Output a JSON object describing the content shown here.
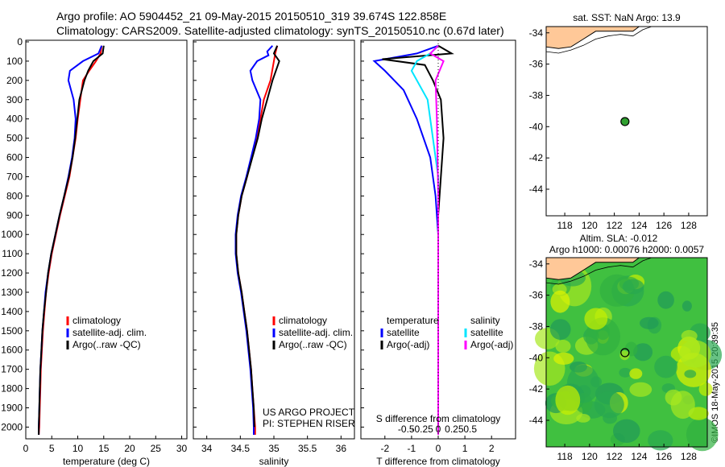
{
  "header": {
    "line1": "Argo profile: AO 5904452_21 09-May-2015 20150510_319 39.674S 122.858E",
    "line2": "Climatology: CARS2009. Satellite-adjusted climatology: synTS_20150510.nc (0.67d later)"
  },
  "credit": "©IMOS 18-May-2015 20:39:35",
  "colors": {
    "climatology": "#ff0000",
    "satellite": "#0000ff",
    "argo": "#000000",
    "sat_diff": "#00e5ff",
    "argo_sdiff": "#ff00ff",
    "land": "#ffc898",
    "sla": "#30c030"
  },
  "chart_data": [
    {
      "type": "line",
      "xlabel": "temperature (deg C)",
      "xlim": [
        0,
        31
      ],
      "ylim": [
        2050,
        0
      ],
      "xticks": [
        "0",
        "5",
        "10",
        "15",
        "20",
        "25",
        "30"
      ],
      "yticks": [
        "0",
        "100",
        "200",
        "300",
        "400",
        "500",
        "600",
        "700",
        "800",
        "900",
        "1000",
        "1100",
        "1200",
        "1300",
        "1400",
        "1500",
        "1600",
        "1700",
        "1800",
        "1900",
        "2000"
      ],
      "legend": [
        "climatology",
        "satellite-adj. clim.",
        "Argo(..raw -QC)"
      ],
      "series": [
        {
          "name": "climatology",
          "color": "#ff0000",
          "points": [
            [
              14.6,
              20
            ],
            [
              14.4,
              60
            ],
            [
              13.5,
              100
            ],
            [
              12.2,
              150
            ],
            [
              11.0,
              200
            ],
            [
              10.5,
              300
            ],
            [
              10.0,
              400
            ],
            [
              9.6,
              500
            ],
            [
              9.0,
              600
            ],
            [
              8.4,
              700
            ],
            [
              7.5,
              800
            ],
            [
              6.6,
              900
            ],
            [
              5.8,
              1000
            ],
            [
              5.0,
              1100
            ],
            [
              4.4,
              1200
            ],
            [
              3.9,
              1300
            ],
            [
              3.6,
              1400
            ],
            [
              3.3,
              1500
            ],
            [
              3.1,
              1600
            ],
            [
              2.9,
              1700
            ],
            [
              2.8,
              1800
            ],
            [
              2.7,
              1900
            ],
            [
              2.6,
              2000
            ],
            [
              2.5,
              2040
            ]
          ]
        },
        {
          "name": "satellite-adj. clim.",
          "color": "#0000ff",
          "points": [
            [
              14.6,
              20
            ],
            [
              14.0,
              60
            ],
            [
              11.0,
              100
            ],
            [
              8.5,
              150
            ],
            [
              8.2,
              200
            ],
            [
              9.2,
              300
            ],
            [
              9.6,
              400
            ],
            [
              9.4,
              500
            ],
            [
              8.9,
              600
            ],
            [
              8.2,
              700
            ],
            [
              7.4,
              800
            ],
            [
              6.5,
              900
            ],
            [
              5.7,
              1000
            ],
            [
              4.9,
              1100
            ],
            [
              4.3,
              1200
            ],
            [
              3.8,
              1300
            ],
            [
              3.5,
              1400
            ],
            [
              3.2,
              1500
            ],
            [
              3.0,
              1600
            ],
            [
              2.8,
              1700
            ],
            [
              2.7,
              1800
            ],
            [
              2.6,
              1900
            ],
            [
              2.5,
              2000
            ],
            [
              2.5,
              2040
            ]
          ]
        },
        {
          "name": "Argo(..raw -QC)",
          "color": "#000000",
          "points": [
            [
              15.0,
              20
            ],
            [
              14.8,
              60
            ],
            [
              13.0,
              100
            ],
            [
              12.0,
              150
            ],
            [
              11.3,
              200
            ],
            [
              10.3,
              300
            ],
            [
              9.9,
              400
            ],
            [
              9.5,
              500
            ],
            [
              9.0,
              600
            ],
            [
              8.3,
              700
            ],
            [
              7.4,
              800
            ],
            [
              6.5,
              900
            ],
            [
              5.7,
              1000
            ],
            [
              4.9,
              1100
            ],
            [
              4.3,
              1200
            ],
            [
              3.9,
              1300
            ],
            [
              3.5,
              1400
            ],
            [
              3.2,
              1500
            ],
            [
              3.0,
              1600
            ],
            [
              2.8,
              1700
            ],
            [
              2.7,
              1800
            ],
            [
              2.6,
              1900
            ],
            [
              2.5,
              2000
            ],
            [
              2.5,
              2040
            ]
          ]
        }
      ]
    },
    {
      "type": "line",
      "xlabel": "salinity",
      "xlim": [
        33.8,
        36.2
      ],
      "ylim": [
        2050,
        0
      ],
      "xticks": [
        "34",
        "34.5",
        "35",
        "35.5",
        "36"
      ],
      "legend": [
        "climatology",
        "satellite-adj. clim.",
        "Argo(..raw -QC)"
      ],
      "annotation": [
        "US ARGO PROJECT",
        "PI: STEPHEN RISER"
      ],
      "series": [
        {
          "name": "climatology",
          "color": "#ff0000",
          "points": [
            [
              35.05,
              20
            ],
            [
              35.02,
              60
            ],
            [
              35.0,
              100
            ],
            [
              34.95,
              200
            ],
            [
              34.85,
              300
            ],
            [
              34.8,
              400
            ],
            [
              34.75,
              500
            ],
            [
              34.67,
              600
            ],
            [
              34.6,
              700
            ],
            [
              34.52,
              800
            ],
            [
              34.47,
              900
            ],
            [
              34.44,
              1000
            ],
            [
              34.44,
              1100
            ],
            [
              34.47,
              1200
            ],
            [
              34.52,
              1300
            ],
            [
              34.56,
              1400
            ],
            [
              34.6,
              1500
            ],
            [
              34.63,
              1600
            ],
            [
              34.66,
              1700
            ],
            [
              34.68,
              1800
            ],
            [
              34.7,
              1900
            ],
            [
              34.72,
              2000
            ],
            [
              34.72,
              2040
            ]
          ]
        },
        {
          "name": "satellite-adj. clim.",
          "color": "#0000ff",
          "points": [
            [
              34.98,
              20
            ],
            [
              34.9,
              50
            ],
            [
              34.92,
              70
            ],
            [
              34.75,
              100
            ],
            [
              34.65,
              150
            ],
            [
              34.68,
              200
            ],
            [
              34.8,
              300
            ],
            [
              34.78,
              400
            ],
            [
              34.73,
              500
            ],
            [
              34.66,
              600
            ],
            [
              34.59,
              700
            ],
            [
              34.51,
              800
            ],
            [
              34.46,
              900
            ],
            [
              34.43,
              1000
            ],
            [
              34.43,
              1100
            ],
            [
              34.46,
              1200
            ],
            [
              34.51,
              1300
            ],
            [
              34.55,
              1400
            ],
            [
              34.59,
              1500
            ],
            [
              34.62,
              1600
            ],
            [
              34.65,
              1700
            ],
            [
              34.67,
              1800
            ],
            [
              34.69,
              1900
            ],
            [
              34.7,
              2000
            ],
            [
              34.7,
              2040
            ]
          ]
        },
        {
          "name": "Argo(..raw -QC)",
          "color": "#000000",
          "points": [
            [
              35.05,
              20
            ],
            [
              35.0,
              60
            ],
            [
              35.08,
              100
            ],
            [
              34.98,
              200
            ],
            [
              34.9,
              300
            ],
            [
              34.82,
              400
            ],
            [
              34.76,
              500
            ],
            [
              34.68,
              600
            ],
            [
              34.6,
              700
            ],
            [
              34.52,
              800
            ],
            [
              34.47,
              900
            ],
            [
              34.44,
              1000
            ],
            [
              34.44,
              1100
            ],
            [
              34.47,
              1200
            ],
            [
              34.52,
              1300
            ],
            [
              34.56,
              1400
            ],
            [
              34.6,
              1500
            ],
            [
              34.63,
              1600
            ],
            [
              34.66,
              1700
            ],
            [
              34.68,
              1800
            ],
            [
              34.7,
              1900
            ],
            [
              34.71,
              2000
            ]
          ]
        }
      ]
    },
    {
      "type": "line",
      "xlabel": "T difference from climatology",
      "secondary_xlabel": "S difference from climatology",
      "xlim": [
        -2.9,
        2.9
      ],
      "ylim": [
        2050,
        0
      ],
      "xticks": [
        "-2",
        "-1",
        "0",
        "1",
        "2"
      ],
      "secondary_xticks": [
        "-0.5",
        "-0.25",
        "0",
        "0.25",
        "0.5"
      ],
      "legend_headers": [
        "temperature",
        "salinity"
      ],
      "legend": [
        "satellite",
        "Argo(-adj)",
        "satellite",
        "Argo(-adj)"
      ],
      "series": [
        {
          "name": "satellite",
          "color": "#0000ff",
          "points": [
            [
              0,
              20
            ],
            [
              -0.8,
              60
            ],
            [
              -2.4,
              100
            ],
            [
              -2.0,
              150
            ],
            [
              -1.3,
              250
            ],
            [
              -0.8,
              400
            ],
            [
              -0.3,
              600
            ],
            [
              -0.1,
              800
            ],
            [
              0,
              1000
            ],
            [
              0,
              2040
            ]
          ]
        },
        {
          "name": "Argo(-adj)",
          "color": "#000000",
          "points": [
            [
              0,
              20
            ],
            [
              0.5,
              60
            ],
            [
              -2.1,
              90
            ],
            [
              -0.5,
              120
            ],
            [
              -0.2,
              200
            ],
            [
              0.1,
              300
            ],
            [
              0.2,
              500
            ],
            [
              0.1,
              700
            ],
            [
              0,
              900
            ],
            [
              0,
              2040
            ]
          ]
        },
        {
          "name": "satellite",
          "color": "#00e5ff",
          "points": [
            [
              0,
              20
            ],
            [
              -0.3,
              60
            ],
            [
              -0.8,
              100
            ],
            [
              -1.0,
              150
            ],
            [
              -0.4,
              300
            ],
            [
              -0.2,
              500
            ],
            [
              0,
              700
            ],
            [
              0,
              2040
            ]
          ]
        },
        {
          "name": "Argo(-adj)",
          "color": "#ff00ff",
          "points": [
            [
              0,
              20
            ],
            [
              -0.3,
              60
            ],
            [
              0.2,
              100
            ],
            [
              -0.1,
              200
            ],
            [
              -0.05,
              400
            ],
            [
              0,
              800
            ],
            [
              0,
              2040
            ]
          ]
        }
      ]
    },
    {
      "type": "scatter",
      "title": "sat. SST: NaN Argo: 13.9",
      "xlim": [
        116.5,
        129.5
      ],
      "ylim": [
        -45.7,
        -33.6
      ],
      "xticks": [
        "118",
        "120",
        "122",
        "124",
        "126",
        "128"
      ],
      "yticks": [
        "-34",
        "-36",
        "-38",
        "-40",
        "-42",
        "-44"
      ],
      "marker": {
        "lon": 122.858,
        "lat": -39.674,
        "color": "#30a030"
      }
    },
    {
      "type": "heatmap",
      "title": "Altim. SLA: -0.012",
      "subtitle": "Argo h1000: 0.00076 h2000: 0.0057",
      "xlim": [
        116.5,
        129.5
      ],
      "ylim": [
        -45.7,
        -33.6
      ],
      "xticks": [
        "118",
        "120",
        "122",
        "124",
        "126",
        "128"
      ],
      "yticks": [
        "-34",
        "-36",
        "-38",
        "-40",
        "-42",
        "-44"
      ],
      "marker": {
        "lon": 122.858,
        "lat": -39.674
      }
    }
  ]
}
